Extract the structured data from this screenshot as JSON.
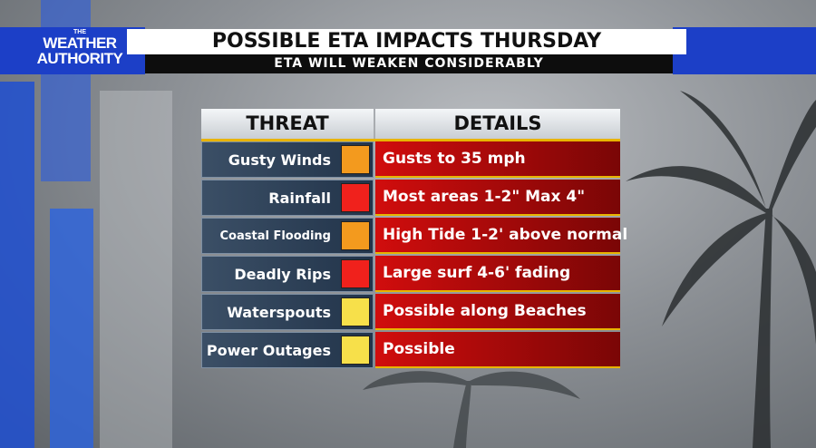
{
  "header": {
    "logo": {
      "small": "THE",
      "line1": "WEATHER",
      "line2": "AUTHORITY"
    },
    "title": "POSSIBLE ETA IMPACTS THURSDAY",
    "subtitle": "ETA WILL WEAKEN CONSIDERABLY"
  },
  "table": {
    "columns": [
      "THREAT",
      "DETAILS"
    ],
    "rows": [
      {
        "threat": "Gusty Winds",
        "color": "#f39a1e",
        "details": "Gusts to 35 mph"
      },
      {
        "threat": "Rainfall",
        "color": "#f0211c",
        "details": "Most areas 1-2\" Max 4\""
      },
      {
        "threat": "Coastal Flooding",
        "color": "#f39a1e",
        "details": "High Tide 1-2' above normal"
      },
      {
        "threat": "Deadly Rips",
        "color": "#f0211c",
        "details": "Large surf 4-6' fading"
      },
      {
        "threat": "Waterspouts",
        "color": "#f7e04a",
        "details": "Possible along Beaches"
      },
      {
        "threat": "Power Outages",
        "color": "#f7e04a",
        "details": "Possible"
      }
    ]
  }
}
